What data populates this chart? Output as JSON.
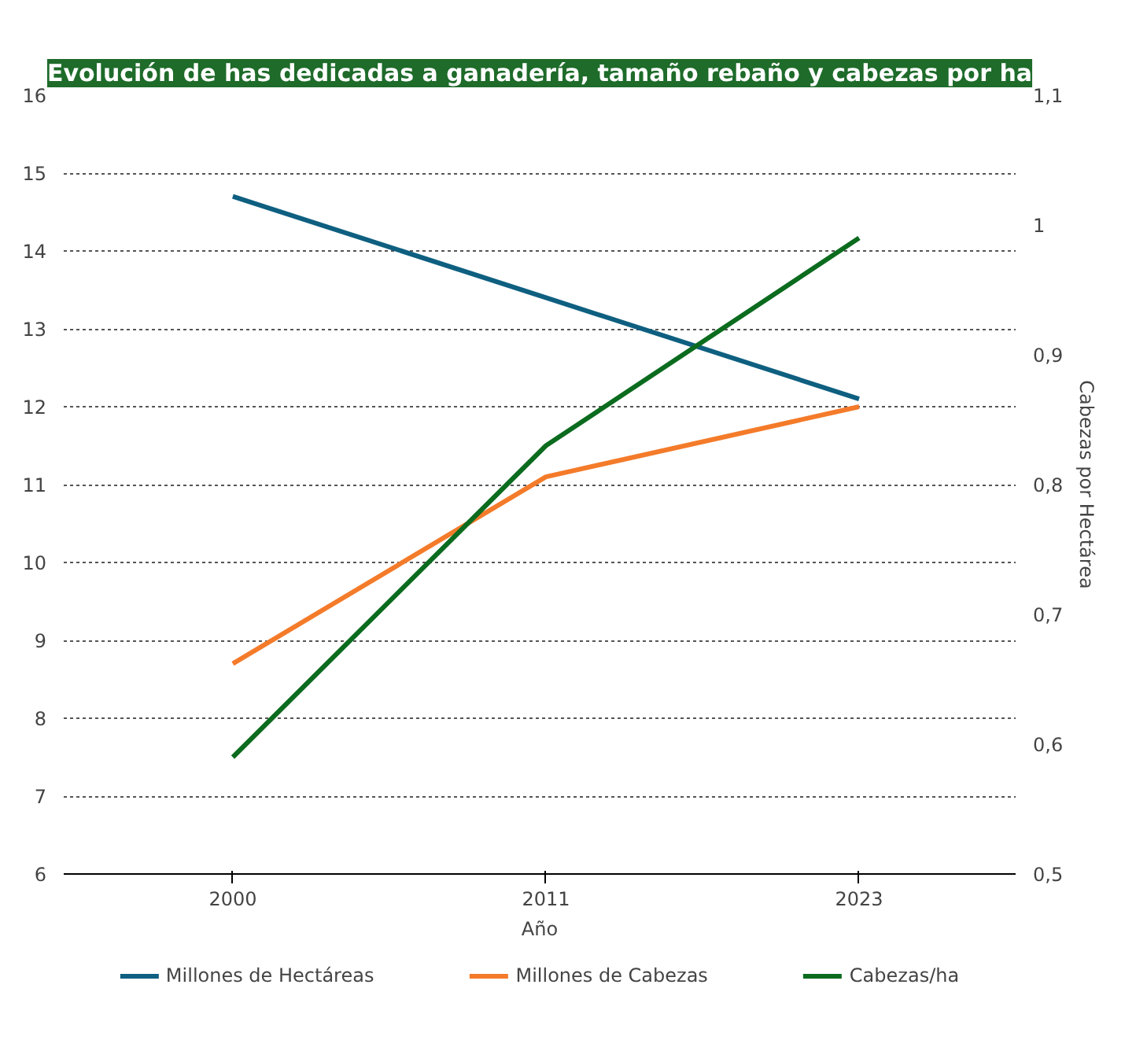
{
  "chart_data": {
    "type": "line",
    "title": "Evolución de has dedicadas a ganadería, tamaño rebaño y cabezas por ha",
    "xlabel": "Año",
    "y2label": "Cabezas por Hectárea",
    "categories": [
      "2000",
      "2011",
      "2023"
    ],
    "series": [
      {
        "name": "Millones de Hectáreas",
        "color": "#0e5f80",
        "values": [
          14.7,
          13.4,
          12.1
        ]
      },
      {
        "name": "Millones de Cabezas",
        "color": "#f47b2a",
        "values": [
          8.7,
          11.1,
          12.0
        ]
      },
      {
        "name": "Cabezas/ha",
        "color": "#0b6b1e",
        "values": [
          0.59,
          0.83,
          0.99
        ],
        "axis": "y2"
      }
    ],
    "ylim": [
      6,
      16
    ],
    "yticks": [
      6,
      7,
      8,
      9,
      10,
      11,
      12,
      13,
      14,
      15,
      16
    ],
    "y2lim": [
      0.5,
      1.1
    ],
    "y2ticks": [
      {
        "value": 0.5,
        "label": "0,5"
      },
      {
        "value": 0.6,
        "label": "0,6"
      },
      {
        "value": 0.7,
        "label": "0,7"
      },
      {
        "value": 0.8,
        "label": "0,8"
      },
      {
        "value": 0.9,
        "label": "0,9"
      },
      {
        "value": 1,
        "label": "1"
      },
      {
        "value": 1.1,
        "label": "1,1"
      }
    ],
    "grid": "y",
    "legend": "bottom",
    "line_style": "solid"
  }
}
